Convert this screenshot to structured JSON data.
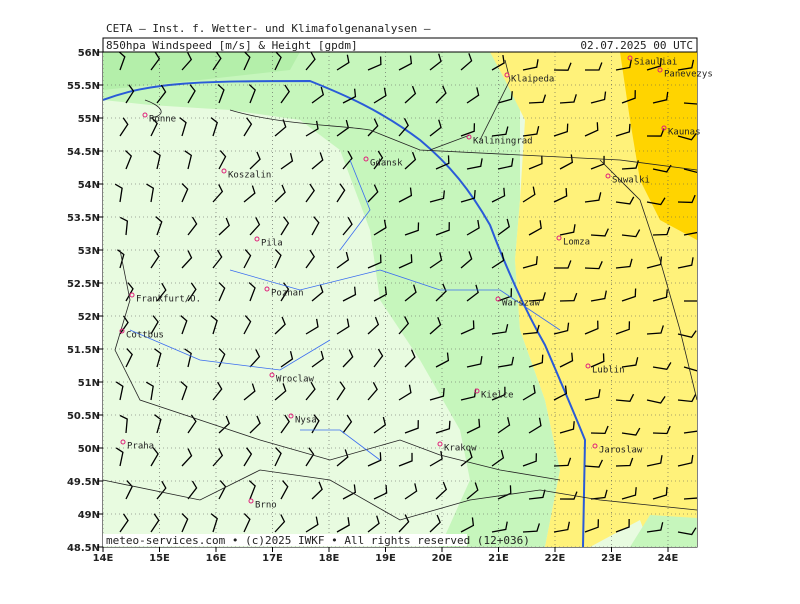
{
  "header": {
    "institute": "CETA — Inst. f. Wetter- und Klimafolgenanalysen —",
    "title": "850hpa Windspeed [m/s] & Height [gpdm]",
    "valid_time": "02.07.2025 00 UTC"
  },
  "footer": "meteo-services.com • (c)2025 IWKF • All rights reserved (12+036)",
  "lat_labels": [
    "56N",
    "55.5N",
    "55N",
    "54.5N",
    "54N",
    "53.5N",
    "53N",
    "52.5N",
    "52N",
    "51.5N",
    "51N",
    "50.5N",
    "50N",
    "49.5N",
    "49N",
    "48.5N"
  ],
  "lon_labels": [
    "14E",
    "15E",
    "16E",
    "17E",
    "18E",
    "19E",
    "20E",
    "21E",
    "22E",
    "23E",
    "24E"
  ],
  "cities": [
    "Siauliai",
    "Panevezys",
    "Klaipeda",
    "Kaunas",
    "Ronne",
    "Kaliningrad",
    "Gdansk",
    "Koszalin",
    "Suwalki",
    "Lomza",
    "Pila",
    "Poznan",
    "Warszaw",
    "Frankfurt/O.",
    "Cottbus",
    "Lublin",
    "Wroclaw",
    "Kielce",
    "Nysa",
    "Krakow",
    "Praha",
    "Jaroslaw",
    "Brno"
  ]
}
